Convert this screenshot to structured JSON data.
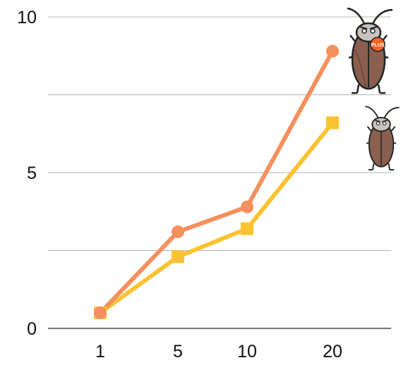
{
  "chart_data": {
    "type": "line",
    "categories": [
      "1",
      "5",
      "10",
      "20"
    ],
    "series": [
      {
        "values": [
          0.5,
          3.1,
          3.9,
          8.9
        ],
        "color": "#F58F5C",
        "marker": "circle"
      },
      {
        "values": [
          0.5,
          2.3,
          3.2,
          6.6
        ],
        "color": "#FBC331",
        "marker": "square"
      }
    ],
    "title": "",
    "xlabel": "",
    "ylabel": "",
    "ylim": [
      0,
      10
    ],
    "y_ticks": [
      "0",
      "5",
      "10"
    ],
    "gridlines": [
      0,
      2.5,
      5,
      7.5,
      10
    ],
    "grid": true,
    "legend": "top-right, cockroach mascot pictures",
    "legend_entries": [
      {
        "icon": "cockroach-plus-icon",
        "badge": "PLUS"
      },
      {
        "icon": "cockroach-icon"
      }
    ]
  }
}
